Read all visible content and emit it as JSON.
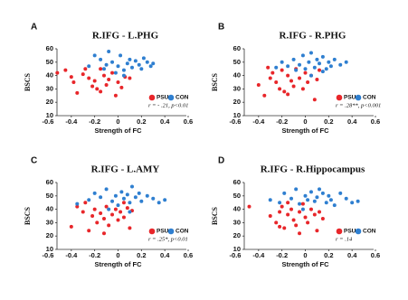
{
  "chart_data": [
    {
      "type": "scatter",
      "panel": "A",
      "title": "R.IFG - L.PHG",
      "x_label": "Strength of FC",
      "y_label": "BSCS",
      "annotation": "r = - .21, p<0.01",
      "xlim": [
        -0.6,
        0.6
      ],
      "xticks": [
        -0.6,
        -0.4,
        -0.2,
        0,
        0.2,
        0.4,
        0.6
      ],
      "ylim": [
        10,
        60
      ],
      "yticks": [
        10,
        20,
        30,
        40,
        50,
        60
      ],
      "series": [
        {
          "name": "PSU",
          "color": "#e8262a",
          "x": [
            -0.52,
            -0.45,
            -0.38,
            -0.35,
            -0.3,
            -0.28,
            -0.25,
            -0.22,
            -0.2,
            -0.18,
            -0.15,
            -0.12,
            -0.1,
            -0.08,
            -0.05,
            -0.02,
            0.0,
            0.03,
            0.06,
            0.1,
            -0.4,
            -0.15
          ],
          "values": [
            42,
            44,
            35,
            27,
            41,
            45,
            38,
            32,
            36,
            30,
            28,
            40,
            33,
            37,
            42,
            25,
            35,
            31,
            39,
            38,
            39,
            45
          ]
        },
        {
          "name": "CON",
          "color": "#2f7fd0",
          "x": [
            -0.25,
            -0.2,
            -0.15,
            -0.12,
            -0.1,
            -0.05,
            -0.02,
            0.0,
            0.02,
            0.05,
            0.08,
            0.1,
            0.12,
            0.15,
            0.18,
            0.2,
            0.22,
            0.25,
            0.28,
            0.3,
            -0.08,
            0.05
          ],
          "values": [
            47,
            55,
            52,
            45,
            48,
            50,
            42,
            47,
            55,
            44,
            49,
            52,
            46,
            51,
            48,
            45,
            53,
            50,
            47,
            49,
            58,
            40
          ]
        }
      ]
    },
    {
      "type": "scatter",
      "panel": "B",
      "title": "R.IFG - R.PHG",
      "x_label": "Strength of FC",
      "y_label": "BSCS",
      "annotation": "r = .28**, p<0.001",
      "xlim": [
        -0.6,
        0.6
      ],
      "xticks": [
        -0.6,
        -0.4,
        -0.2,
        0,
        0.2,
        0.4,
        0.6
      ],
      "ylim": [
        10,
        60
      ],
      "yticks": [
        10,
        20,
        30,
        40,
        50,
        60
      ],
      "series": [
        {
          "name": "PSU",
          "color": "#e8262a",
          "x": [
            -0.4,
            -0.35,
            -0.3,
            -0.28,
            -0.25,
            -0.22,
            -0.2,
            -0.18,
            -0.15,
            -0.12,
            -0.1,
            -0.08,
            -0.05,
            -0.02,
            0.0,
            0.02,
            0.05,
            0.08,
            0.1,
            -0.32,
            -0.15,
            0.12
          ],
          "values": [
            33,
            25,
            38,
            42,
            35,
            30,
            44,
            28,
            40,
            36,
            32,
            45,
            38,
            30,
            42,
            35,
            40,
            22,
            37,
            46,
            26,
            44
          ]
        },
        {
          "name": "CON",
          "color": "#2f7fd0",
          "x": [
            -0.25,
            -0.2,
            -0.15,
            -0.1,
            -0.05,
            -0.02,
            0.0,
            0.03,
            0.05,
            0.08,
            0.1,
            0.12,
            0.15,
            0.18,
            0.2,
            0.22,
            0.25,
            0.3,
            0.35,
            0.05,
            -0.08,
            0.15
          ],
          "values": [
            46,
            50,
            47,
            52,
            48,
            55,
            45,
            50,
            57,
            46,
            52,
            49,
            54,
            45,
            50,
            47,
            52,
            48,
            50,
            40,
            44,
            43
          ]
        }
      ]
    },
    {
      "type": "scatter",
      "panel": "C",
      "title": "R.IFG - L.AMY",
      "x_label": "Strength of FC",
      "y_label": "BSCS",
      "annotation": "r = .25*, p<0.01",
      "xlim": [
        -0.6,
        0.6
      ],
      "xticks": [
        -0.6,
        -0.4,
        -0.2,
        0,
        0.2,
        0.4,
        0.6
      ],
      "ylim": [
        10,
        60
      ],
      "yticks": [
        10,
        20,
        30,
        40,
        50,
        60
      ],
      "series": [
        {
          "name": "PSU",
          "color": "#e8262a",
          "x": [
            -0.4,
            -0.35,
            -0.3,
            -0.25,
            -0.22,
            -0.2,
            -0.18,
            -0.15,
            -0.12,
            -0.1,
            -0.08,
            -0.05,
            -0.02,
            0.0,
            0.02,
            0.05,
            0.08,
            0.1,
            0.12,
            -0.28,
            -0.12,
            0.05
          ],
          "values": [
            27,
            42,
            38,
            24,
            35,
            40,
            30,
            37,
            33,
            42,
            28,
            36,
            40,
            32,
            38,
            34,
            41,
            26,
            39,
            45,
            22,
            45
          ]
        },
        {
          "name": "CON",
          "color": "#2f7fd0",
          "x": [
            -0.35,
            -0.25,
            -0.2,
            -0.15,
            -0.1,
            -0.05,
            -0.02,
            0.0,
            0.03,
            0.05,
            0.08,
            0.1,
            0.12,
            0.15,
            0.18,
            0.2,
            0.25,
            0.3,
            0.35,
            0.4,
            -0.08,
            0.1
          ],
          "values": [
            44,
            47,
            52,
            49,
            55,
            46,
            50,
            43,
            53,
            48,
            51,
            45,
            57,
            49,
            52,
            46,
            50,
            48,
            45,
            47,
            40,
            38
          ]
        }
      ]
    },
    {
      "type": "scatter",
      "panel": "D",
      "title": "R.IFG - R.Hippocampus",
      "x_label": "Strength of FC",
      "y_label": "BSCS",
      "annotation": "r = .14",
      "xlim": [
        -0.6,
        0.6
      ],
      "xticks": [
        -0.6,
        -0.4,
        -0.2,
        0,
        0.2,
        0.4,
        0.6
      ],
      "ylim": [
        10,
        60
      ],
      "yticks": [
        10,
        20,
        30,
        40,
        50,
        60
      ],
      "series": [
        {
          "name": "PSU",
          "color": "#e8262a",
          "x": [
            -0.48,
            -0.3,
            -0.25,
            -0.22,
            -0.2,
            -0.18,
            -0.15,
            -0.12,
            -0.1,
            -0.08,
            -0.05,
            -0.02,
            0.0,
            0.02,
            0.05,
            0.08,
            0.1,
            0.12,
            -0.15,
            -0.05,
            0.15,
            -0.22
          ],
          "values": [
            42,
            35,
            30,
            38,
            42,
            26,
            36,
            40,
            32,
            28,
            38,
            44,
            34,
            30,
            40,
            36,
            24,
            38,
            45,
            22,
            33,
            27
          ]
        },
        {
          "name": "CON",
          "color": "#2f7fd0",
          "x": [
            -0.3,
            -0.22,
            -0.18,
            -0.12,
            -0.08,
            -0.05,
            0.0,
            0.02,
            0.05,
            0.08,
            0.1,
            0.15,
            0.18,
            0.2,
            0.22,
            0.25,
            0.3,
            0.35,
            0.4,
            0.45,
            -0.02,
            0.12
          ],
          "values": [
            47,
            45,
            52,
            48,
            55,
            44,
            50,
            47,
            53,
            46,
            49,
            52,
            45,
            50,
            47,
            43,
            52,
            48,
            45,
            46,
            40,
            55
          ]
        }
      ]
    }
  ]
}
